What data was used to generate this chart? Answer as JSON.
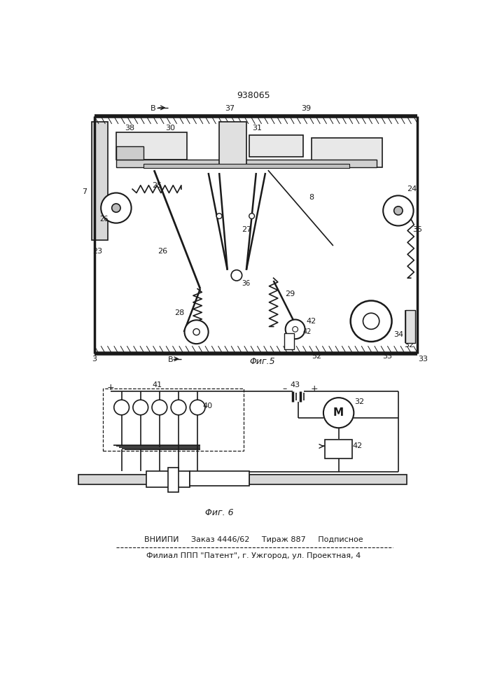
{
  "patent_number": "938065",
  "footer_line1": "ВНИИПИ     Заказ 4446/62     Тираж 887     Подписное",
  "footer_line2": "Филиал ППП \"Патент\", г. Ужгород, ул. Проектная, 4",
  "fig5_caption": "Φиг.5",
  "fig6_caption": "Φиг. 6",
  "bg_color": "#ffffff",
  "line_color": "#1a1a1a"
}
